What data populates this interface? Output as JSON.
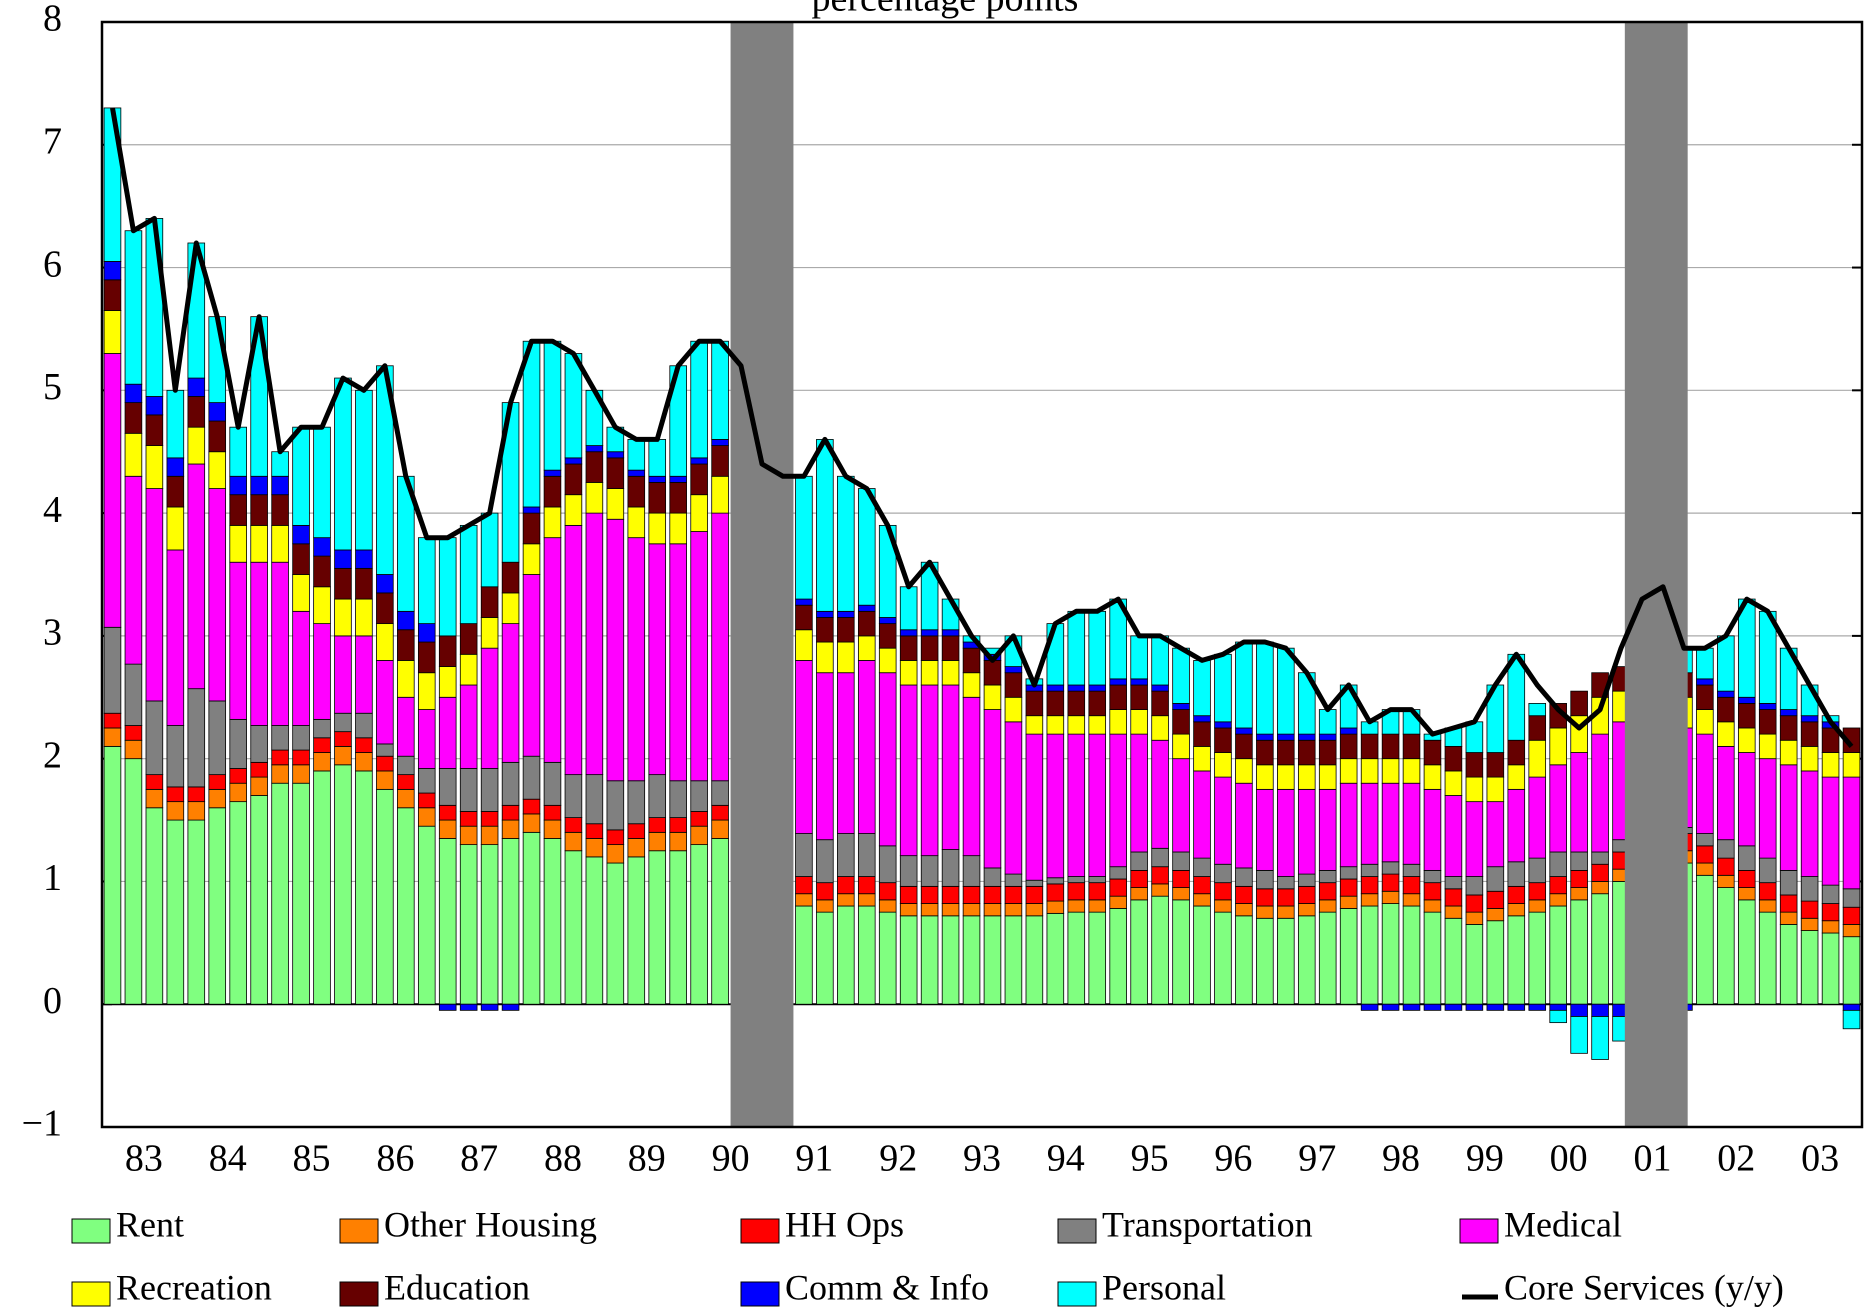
{
  "chart_data": {
    "type": "bar",
    "stacked": true,
    "subtitle": "percentage points",
    "x": [
      1983.125,
      1983.375,
      1983.625,
      1983.875,
      1984.125,
      1984.375,
      1984.625,
      1984.875,
      1985.125,
      1985.375,
      1985.625,
      1985.875,
      1986.125,
      1986.375,
      1986.625,
      1986.875,
      1987.125,
      1987.375,
      1987.625,
      1987.875,
      1988.125,
      1988.375,
      1988.625,
      1988.875,
      1989.125,
      1989.375,
      1989.625,
      1989.875,
      1990.125,
      1990.375,
      1990.625,
      1990.875,
      1991.125,
      1991.375,
      1991.625,
      1991.875,
      1992.125,
      1992.375,
      1992.625,
      1992.875,
      1993.125,
      1993.375,
      1993.625,
      1993.875,
      1994.125,
      1994.375,
      1994.625,
      1994.875,
      1995.125,
      1995.375,
      1995.625,
      1995.875,
      1996.125,
      1996.375,
      1996.625,
      1996.875,
      1997.125,
      1997.375,
      1997.625,
      1997.875,
      1998.125,
      1998.375,
      1998.625,
      1998.875,
      1999.125,
      1999.375,
      1999.625,
      1999.875,
      2000.125,
      2000.375,
      2000.625,
      2000.875,
      2001.125,
      2001.375,
      2001.625,
      2001.875,
      2002.125,
      2002.375,
      2002.625,
      2002.875,
      2003.125,
      2003.375,
      2003.625,
      2003.875
    ],
    "xlim": [
      1983,
      2004
    ],
    "xticks": [
      {
        "value": 1983.5,
        "label": "83"
      },
      {
        "value": 1984.5,
        "label": "84"
      },
      {
        "value": 1985.5,
        "label": "85"
      },
      {
        "value": 1986.5,
        "label": "86"
      },
      {
        "value": 1987.5,
        "label": "87"
      },
      {
        "value": 1988.5,
        "label": "88"
      },
      {
        "value": 1989.5,
        "label": "89"
      },
      {
        "value": 1990.5,
        "label": "90"
      },
      {
        "value": 1991.5,
        "label": "91"
      },
      {
        "value": 1992.5,
        "label": "92"
      },
      {
        "value": 1993.5,
        "label": "93"
      },
      {
        "value": 1994.5,
        "label": "94"
      },
      {
        "value": 1995.5,
        "label": "95"
      },
      {
        "value": 1996.5,
        "label": "96"
      },
      {
        "value": 1997.5,
        "label": "97"
      },
      {
        "value": 1998.5,
        "label": "98"
      },
      {
        "value": 1999.5,
        "label": "99"
      },
      {
        "value": 2000.5,
        "label": "00"
      },
      {
        "value": 2001.5,
        "label": "01"
      },
      {
        "value": 2002.5,
        "label": "02"
      },
      {
        "value": 2003.5,
        "label": "03"
      }
    ],
    "ylim": [
      -1,
      8
    ],
    "yticks": [
      {
        "value": -1,
        "label": "−1"
      },
      0,
      1,
      2,
      3,
      4,
      5,
      6,
      7,
      8
    ],
    "grid": true,
    "recessions": [
      [
        1990.5,
        1991.25
      ],
      [
        2001.17,
        2001.92
      ]
    ],
    "recession_color": "#808080",
    "series": [
      {
        "name": "Rent",
        "color": "#80ff80",
        "values": [
          2.1,
          2.0,
          1.6,
          1.5,
          1.5,
          1.6,
          1.65,
          1.7,
          1.8,
          1.8,
          1.9,
          1.95,
          1.9,
          1.75,
          1.6,
          1.45,
          1.35,
          1.3,
          1.3,
          1.35,
          1.4,
          1.35,
          1.25,
          1.2,
          1.15,
          1.2,
          1.25,
          1.25,
          1.3,
          1.35,
          1.45,
          1.35,
          1.2,
          0.8,
          0.75,
          0.8,
          0.8,
          0.75,
          0.72,
          0.72,
          0.72,
          0.72,
          0.72,
          0.72,
          0.72,
          0.74,
          0.75,
          0.75,
          0.78,
          0.85,
          0.88,
          0.85,
          0.8,
          0.75,
          0.72,
          0.7,
          0.7,
          0.72,
          0.75,
          0.78,
          0.8,
          0.82,
          0.8,
          0.75,
          0.7,
          0.65,
          0.68,
          0.72,
          0.75,
          0.8,
          0.85,
          0.9,
          1.0,
          1.05,
          1.1,
          1.15,
          1.05,
          0.95,
          0.85,
          0.75,
          0.65,
          0.6,
          0.58,
          0.55
        ]
      },
      {
        "name": "Other Housing",
        "color": "#ff8000",
        "values": [
          0.15,
          0.15,
          0.15,
          0.15,
          0.15,
          0.15,
          0.15,
          0.15,
          0.15,
          0.15,
          0.15,
          0.15,
          0.15,
          0.15,
          0.15,
          0.15,
          0.15,
          0.15,
          0.15,
          0.15,
          0.15,
          0.15,
          0.15,
          0.15,
          0.15,
          0.15,
          0.15,
          0.15,
          0.15,
          0.15,
          0.15,
          0.15,
          0.1,
          0.1,
          0.1,
          0.1,
          0.1,
          0.1,
          0.1,
          0.1,
          0.1,
          0.1,
          0.1,
          0.1,
          0.1,
          0.1,
          0.1,
          0.1,
          0.1,
          0.1,
          0.1,
          0.1,
          0.1,
          0.1,
          0.1,
          0.1,
          0.1,
          0.1,
          0.1,
          0.1,
          0.1,
          0.1,
          0.1,
          0.1,
          0.1,
          0.1,
          0.1,
          0.1,
          0.1,
          0.1,
          0.1,
          0.1,
          0.1,
          0.1,
          0.1,
          0.1,
          0.1,
          0.1,
          0.1,
          0.1,
          0.1,
          0.1,
          0.1,
          0.1
        ]
      },
      {
        "name": "HH Ops",
        "color": "#ff0000",
        "values": [
          0.12,
          0.12,
          0.12,
          0.12,
          0.12,
          0.12,
          0.12,
          0.12,
          0.12,
          0.12,
          0.12,
          0.12,
          0.12,
          0.12,
          0.12,
          0.12,
          0.12,
          0.12,
          0.12,
          0.12,
          0.12,
          0.12,
          0.12,
          0.12,
          0.12,
          0.12,
          0.12,
          0.12,
          0.12,
          0.12,
          0.12,
          0.12,
          0.14,
          0.14,
          0.14,
          0.14,
          0.14,
          0.14,
          0.14,
          0.14,
          0.14,
          0.14,
          0.14,
          0.14,
          0.14,
          0.14,
          0.14,
          0.14,
          0.14,
          0.14,
          0.14,
          0.14,
          0.14,
          0.14,
          0.14,
          0.14,
          0.14,
          0.14,
          0.14,
          0.14,
          0.14,
          0.14,
          0.14,
          0.14,
          0.14,
          0.14,
          0.14,
          0.14,
          0.14,
          0.14,
          0.14,
          0.14,
          0.14,
          0.14,
          0.14,
          0.14,
          0.14,
          0.14,
          0.14,
          0.14,
          0.14,
          0.14,
          0.14,
          0.14
        ]
      },
      {
        "name": "Transportation",
        "color": "#808080",
        "values": [
          0.7,
          0.5,
          0.6,
          0.5,
          0.8,
          0.6,
          0.4,
          0.3,
          0.2,
          0.2,
          0.15,
          0.15,
          0.2,
          0.1,
          0.15,
          0.2,
          0.3,
          0.35,
          0.35,
          0.35,
          0.35,
          0.35,
          0.35,
          0.4,
          0.4,
          0.35,
          0.35,
          0.3,
          0.25,
          0.2,
          0.25,
          0.3,
          0.3,
          0.35,
          0.35,
          0.35,
          0.35,
          0.3,
          0.25,
          0.25,
          0.3,
          0.25,
          0.15,
          0.1,
          0.05,
          0.05,
          0.05,
          0.05,
          0.1,
          0.15,
          0.15,
          0.15,
          0.15,
          0.15,
          0.15,
          0.15,
          0.1,
          0.1,
          0.1,
          0.1,
          0.1,
          0.1,
          0.1,
          0.1,
          0.1,
          0.15,
          0.2,
          0.2,
          0.2,
          0.2,
          0.15,
          0.1,
          0.1,
          0.1,
          0.05,
          0.05,
          0.1,
          0.15,
          0.2,
          0.2,
          0.2,
          0.2,
          0.15,
          0.15
        ]
      },
      {
        "name": "Medical",
        "color": "#ff00ff",
        "values": [
          2.23,
          1.53,
          1.73,
          1.43,
          1.83,
          1.73,
          1.28,
          1.33,
          1.33,
          0.93,
          0.78,
          0.63,
          0.63,
          0.68,
          0.48,
          0.48,
          0.58,
          0.68,
          0.98,
          1.13,
          1.48,
          1.83,
          2.03,
          2.13,
          2.13,
          1.98,
          1.88,
          1.93,
          2.03,
          2.18,
          1.93,
          1.68,
          1.56,
          1.41,
          1.36,
          1.31,
          1.41,
          1.41,
          1.39,
          1.39,
          1.34,
          1.29,
          1.29,
          1.24,
          1.19,
          1.17,
          1.16,
          1.16,
          1.08,
          0.96,
          0.88,
          0.76,
          0.71,
          0.71,
          0.69,
          0.66,
          0.71,
          0.69,
          0.66,
          0.68,
          0.66,
          0.64,
          0.66,
          0.66,
          0.66,
          0.61,
          0.53,
          0.59,
          0.66,
          0.71,
          0.81,
          0.96,
          0.96,
          0.96,
          0.91,
          0.81,
          0.81,
          0.76,
          0.76,
          0.81,
          0.86,
          0.86,
          0.88,
          0.91
        ]
      },
      {
        "name": "Recreation",
        "color": "#ffff00",
        "values": [
          0.35,
          0.35,
          0.35,
          0.35,
          0.3,
          0.3,
          0.3,
          0.3,
          0.3,
          0.3,
          0.3,
          0.3,
          0.3,
          0.3,
          0.3,
          0.3,
          0.25,
          0.25,
          0.25,
          0.25,
          0.25,
          0.25,
          0.25,
          0.25,
          0.25,
          0.25,
          0.25,
          0.25,
          0.3,
          0.3,
          0.3,
          0.3,
          0.25,
          0.25,
          0.25,
          0.25,
          0.2,
          0.2,
          0.2,
          0.2,
          0.2,
          0.2,
          0.2,
          0.2,
          0.15,
          0.15,
          0.15,
          0.15,
          0.2,
          0.2,
          0.2,
          0.2,
          0.2,
          0.2,
          0.2,
          0.2,
          0.2,
          0.2,
          0.2,
          0.2,
          0.2,
          0.2,
          0.2,
          0.2,
          0.2,
          0.2,
          0.2,
          0.2,
          0.3,
          0.3,
          0.3,
          0.3,
          0.25,
          0.25,
          0.25,
          0.25,
          0.2,
          0.2,
          0.2,
          0.2,
          0.2,
          0.2,
          0.2,
          0.2
        ]
      },
      {
        "name": "Education",
        "color": "#660000",
        "values": [
          0.25,
          0.25,
          0.25,
          0.25,
          0.25,
          0.25,
          0.25,
          0.25,
          0.25,
          0.25,
          0.25,
          0.25,
          0.25,
          0.25,
          0.25,
          0.25,
          0.25,
          0.25,
          0.25,
          0.25,
          0.25,
          0.25,
          0.25,
          0.25,
          0.25,
          0.25,
          0.25,
          0.25,
          0.25,
          0.25,
          0.25,
          0.25,
          0.2,
          0.2,
          0.2,
          0.2,
          0.2,
          0.2,
          0.2,
          0.2,
          0.2,
          0.2,
          0.2,
          0.2,
          0.2,
          0.2,
          0.2,
          0.2,
          0.2,
          0.2,
          0.2,
          0.2,
          0.2,
          0.2,
          0.2,
          0.2,
          0.2,
          0.2,
          0.2,
          0.2,
          0.2,
          0.2,
          0.2,
          0.2,
          0.2,
          0.2,
          0.2,
          0.2,
          0.2,
          0.2,
          0.2,
          0.2,
          0.2,
          0.2,
          0.2,
          0.2,
          0.2,
          0.2,
          0.2,
          0.2,
          0.2,
          0.2,
          0.2,
          0.2
        ]
      },
      {
        "name": "Comm & Info",
        "color": "#0000ff",
        "values": [
          0.15,
          0.15,
          0.15,
          0.15,
          0.15,
          0.15,
          0.15,
          0.15,
          0.15,
          0.15,
          0.15,
          0.15,
          0.15,
          0.15,
          0.15,
          0.15,
          -0.05,
          -0.05,
          -0.05,
          -0.05,
          0.05,
          0.05,
          0.05,
          0.05,
          0.05,
          0.05,
          0.05,
          0.05,
          0.05,
          0.05,
          0.05,
          0.05,
          0.05,
          0.05,
          0.05,
          0.05,
          0.05,
          0.05,
          0.05,
          0.05,
          0.05,
          0.05,
          0.05,
          0.05,
          0.05,
          0.05,
          0.05,
          0.05,
          0.05,
          0.05,
          0.05,
          0.05,
          0.05,
          0.05,
          0.05,
          0.05,
          0.05,
          0.05,
          0.05,
          0.05,
          -0.05,
          -0.05,
          -0.05,
          -0.05,
          -0.05,
          -0.05,
          -0.05,
          -0.05,
          -0.05,
          -0.05,
          -0.1,
          -0.1,
          -0.1,
          -0.05,
          -0.05,
          -0.05,
          0.05,
          0.05,
          0.05,
          0.05,
          0.05,
          0.05,
          0.05,
          -0.05
        ]
      },
      {
        "name": "Personal",
        "color": "#00ffff",
        "values": [
          1.25,
          1.25,
          1.45,
          0.55,
          1.1,
          0.7,
          0.4,
          1.3,
          0.2,
          0.8,
          0.9,
          1.4,
          1.3,
          1.7,
          1.1,
          0.7,
          0.8,
          0.8,
          0.6,
          1.3,
          1.35,
          1.05,
          0.85,
          0.45,
          0.2,
          0.25,
          0.3,
          0.9,
          0.95,
          0.8,
          0.7,
          0.2,
          0.5,
          1.0,
          1.4,
          1.1,
          0.95,
          0.75,
          0.35,
          0.55,
          0.25,
          0.05,
          0.05,
          0.25,
          0.05,
          0.5,
          0.6,
          0.6,
          0.65,
          0.35,
          0.4,
          0.45,
          0.45,
          0.55,
          0.7,
          0.75,
          0.7,
          0.5,
          0.2,
          0.35,
          0.1,
          0.2,
          0.2,
          0.05,
          0.15,
          0.25,
          0.55,
          0.7,
          0.1,
          -0.1,
          -0.3,
          -0.35,
          -0.2,
          0.5,
          0.65,
          0.2,
          0.25,
          0.45,
          0.8,
          0.75,
          0.5,
          0.25,
          0.05,
          -0.15
        ]
      },
      {
        "name": "Core Services (y/y)",
        "color": "#000000",
        "type": "line",
        "values": [
          7.3,
          6.3,
          6.4,
          5.0,
          6.2,
          5.6,
          4.7,
          5.6,
          4.5,
          4.7,
          4.7,
          5.1,
          5.0,
          5.2,
          4.3,
          3.8,
          3.8,
          3.9,
          4.0,
          4.9,
          5.4,
          5.4,
          5.3,
          5.0,
          4.7,
          4.6,
          4.6,
          5.2,
          5.4,
          5.4,
          5.2,
          4.4,
          4.3,
          4.3,
          4.6,
          4.3,
          4.2,
          3.9,
          3.4,
          3.6,
          3.3,
          3.0,
          2.8,
          3.0,
          2.6,
          3.1,
          3.2,
          3.2,
          3.3,
          3.0,
          3.0,
          2.9,
          2.8,
          2.85,
          2.95,
          2.95,
          2.9,
          2.7,
          2.4,
          2.6,
          2.3,
          2.4,
          2.4,
          2.2,
          2.25,
          2.3,
          2.6,
          2.85,
          2.6,
          2.4,
          2.25,
          2.4,
          2.9,
          3.3,
          3.4,
          2.9,
          2.9,
          3.0,
          3.3,
          3.2,
          2.9,
          2.6,
          2.3,
          2.1
        ]
      }
    ]
  }
}
